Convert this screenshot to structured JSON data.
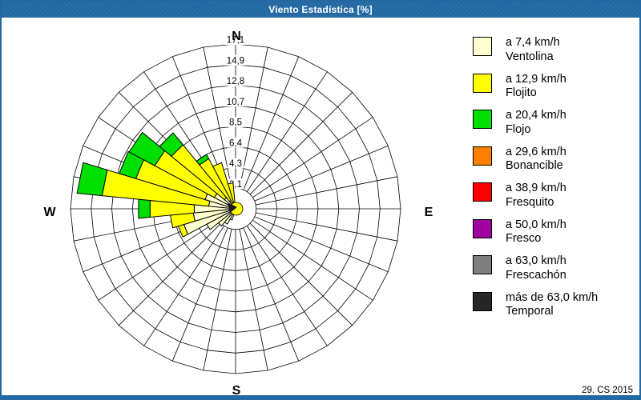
{
  "window": {
    "title": "Viento Estadística [%]",
    "footer": "29. CS 2015",
    "chrome_color": "#2268a2"
  },
  "legend": {
    "items": [
      {
        "speed": "a 7,4 km/h",
        "name": "Ventolina",
        "color": "#FFFFCF"
      },
      {
        "speed": "a 12,9 km/h",
        "name": "Flojito",
        "color": "#FFFF00"
      },
      {
        "speed": "a 20,4 km/h",
        "name": "Flojo",
        "color": "#00E000"
      },
      {
        "speed": "a 29,6 km/h",
        "name": "Bonancible",
        "color": "#FF8000"
      },
      {
        "speed": "a 38,9 km/h",
        "name": "Fresquito",
        "color": "#FF0000"
      },
      {
        "speed": "a 50,0 km/h",
        "name": "Fresco",
        "color": "#A000A0"
      },
      {
        "speed": "a 63,0 km/h",
        "name": "Frescachón",
        "color": "#7F7F7F"
      },
      {
        "speed": "más de 63,0 km/h",
        "name": "Temporal",
        "color": "#262626"
      }
    ]
  },
  "chart_data": {
    "type": "wind-rose (stacked polar bar)",
    "units": "%",
    "title": "Viento Estadística [%]",
    "compass_labels": [
      "N",
      "E",
      "S",
      "W"
    ],
    "num_sectors": 32,
    "sector_width_deg": 11.25,
    "ring_max": 17.1,
    "ring_labels": [
      "2,1",
      "4,3",
      "6,4",
      "8,5",
      "10,7",
      "12,8",
      "14,9",
      "17,1"
    ],
    "grid": "rings drawn as 32-gon polylines with radial spokes from first ring to rim",
    "speed_class_order": [
      "Ventolina",
      "Flojito",
      "Flojo"
    ],
    "bars": [
      {
        "bearing_deg": 202.5,
        "segments": [
          1.2,
          0,
          0
        ]
      },
      {
        "bearing_deg": 213.75,
        "segments": [
          1.8,
          0,
          0
        ]
      },
      {
        "bearing_deg": 225.0,
        "segments": [
          2.3,
          0,
          0
        ]
      },
      {
        "bearing_deg": 236.25,
        "segments": [
          3.4,
          0,
          0
        ]
      },
      {
        "bearing_deg": 247.5,
        "segments": [
          5.6,
          0.6,
          0
        ]
      },
      {
        "bearing_deg": 258.75,
        "segments": [
          4.4,
          2.4,
          0
        ]
      },
      {
        "bearing_deg": 270.0,
        "segments": [
          4.3,
          4.6,
          1.2
        ]
      },
      {
        "bearing_deg": 281.25,
        "segments": [
          2.8,
          11.1,
          2.6
        ]
      },
      {
        "bearing_deg": 292.5,
        "segments": [
          3.3,
          7.5,
          1.8
        ]
      },
      {
        "bearing_deg": 303.75,
        "segments": [
          2.5,
          7.0,
          3.0
        ]
      },
      {
        "bearing_deg": 315.0,
        "segments": [
          1.5,
          7.1,
          1.6
        ]
      },
      {
        "bearing_deg": 326.25,
        "segments": [
          1.0,
          4.9,
          0.5
        ]
      },
      {
        "bearing_deg": 337.5,
        "segments": [
          0.7,
          4.3,
          0
        ]
      },
      {
        "bearing_deg": 348.75,
        "segments": [
          0.5,
          2.2,
          0
        ]
      }
    ],
    "center_marker": {
      "disk_color": "#FFFF00",
      "pointer_color": "#1a1a1a"
    }
  }
}
